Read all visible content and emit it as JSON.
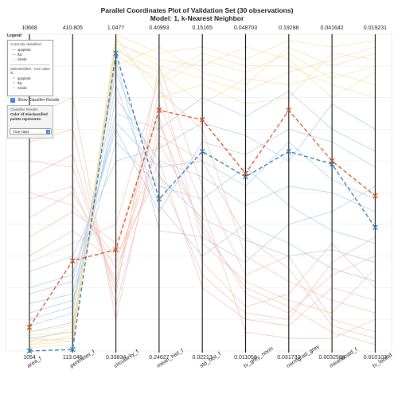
{
  "title": "Parallel Coordinates Plot of Validation Set (30 observations)",
  "subtitle": "Model: 1, k-Nearest Neighbor",
  "legend": {
    "header": "Legend",
    "correct_heading": "Correctly classified",
    "correct_items": [
      {
        "label": "apoptotic",
        "color": "#3d8fd1"
      },
      {
        "label": "flat",
        "color": "#e0622d"
      },
      {
        "label": "mitotic",
        "color": "#f2b233"
      }
    ],
    "mis_heading": "Misclassified - true class is:",
    "mis_items": [
      {
        "label": "apoptotic",
        "color": "#3d8fd1"
      },
      {
        "label": "flat",
        "color": "#e0622d"
      },
      {
        "label": "mitotic",
        "color": "#f2b233"
      }
    ]
  },
  "controls": {
    "show_results_label": "Show Classifier Results",
    "show_results_checked": true,
    "classifier_results_label": "Classifier Results",
    "color_question": "Color of misclassified points represents:",
    "color_select_value": "True class"
  },
  "chart_data": {
    "type": "parallel_coordinates",
    "axes": [
      {
        "name": "area_f",
        "max": "10668",
        "min": "1054"
      },
      {
        "name": "perimeter_f",
        "max": "410.805",
        "min": "113.046"
      },
      {
        "name": "circularity_f",
        "max": "1.0477",
        "min": "0.33834"
      },
      {
        "name": "mean_hist_f",
        "max": "0.40993",
        "min": "0.24627"
      },
      {
        "name": "std_hist_f",
        "max": "0.15165",
        "min": "0.02213"
      },
      {
        "name": "tv_grey_norm",
        "max": "0.048703",
        "min": "0.011056"
      },
      {
        "name": "normgrad_grey",
        "max": "0.19288",
        "min": "0.031732"
      },
      {
        "name": "meanbcstd_f",
        "max": "0.041642",
        "min": "0.0032588"
      },
      {
        "name": "tv_locstd",
        "max": "0.019231",
        "min": "0.010103"
      }
    ],
    "highlighted": [
      {
        "true_class": "apoptotic",
        "color": "#2e7ab8",
        "values": [
          0.0,
          0.005,
          0.94,
          0.48,
          0.63,
          0.55,
          0.63,
          0.59,
          0.39
        ]
      },
      {
        "true_class": "flat",
        "color": "#d9541f",
        "values": [
          0.075,
          0.285,
          0.32,
          0.76,
          0.73,
          0.56,
          0.76,
          0.6,
          0.49
        ]
      }
    ],
    "background_series": [
      {
        "class": "apoptotic",
        "color": "#a9c9e6",
        "values": [
          0.1,
          0.14,
          0.88,
          0.55,
          0.42,
          0.35,
          0.3,
          0.32,
          0.28
        ]
      },
      {
        "class": "apoptotic",
        "color": "#a9c9e6",
        "values": [
          0.06,
          0.09,
          0.8,
          0.6,
          0.55,
          0.46,
          0.52,
          0.5,
          0.44
        ]
      },
      {
        "class": "apoptotic",
        "color": "#a9c9e6",
        "values": [
          0.2,
          0.24,
          0.7,
          0.44,
          0.66,
          0.62,
          0.7,
          0.66,
          0.58
        ]
      },
      {
        "class": "apoptotic",
        "color": "#a9c9e6",
        "values": [
          0.15,
          0.18,
          0.75,
          0.7,
          0.8,
          0.74,
          0.82,
          0.7,
          0.63
        ]
      },
      {
        "class": "apoptotic",
        "color": "#a9c9e6",
        "values": [
          0.04,
          0.06,
          0.92,
          0.38,
          0.36,
          0.28,
          0.4,
          0.44,
          0.52
        ]
      },
      {
        "class": "apoptotic",
        "color": "#a9c9e6",
        "values": [
          0.12,
          0.16,
          0.66,
          0.52,
          0.48,
          0.58,
          0.46,
          0.38,
          0.34
        ]
      },
      {
        "class": "apoptotic",
        "color": "#a9c9e6",
        "values": [
          0.25,
          0.3,
          0.6,
          0.64,
          0.72,
          0.68,
          0.6,
          0.78,
          0.7
        ]
      },
      {
        "class": "apoptotic",
        "color": "#a9c9e6",
        "values": [
          0.08,
          0.12,
          0.84,
          0.46,
          0.3,
          0.4,
          0.34,
          0.26,
          0.22
        ]
      },
      {
        "class": "apoptotic",
        "color": "#a9c9e6",
        "values": [
          0.18,
          0.22,
          0.72,
          0.58,
          0.6,
          0.52,
          0.66,
          0.54,
          0.48
        ]
      },
      {
        "class": "flat",
        "color": "#f2c0b2",
        "values": [
          0.48,
          0.52,
          0.22,
          0.82,
          0.7,
          0.3,
          0.22,
          0.16,
          0.12
        ]
      },
      {
        "class": "flat",
        "color": "#f2c0b2",
        "values": [
          0.3,
          0.38,
          0.28,
          0.66,
          0.4,
          0.18,
          0.12,
          0.24,
          0.3
        ]
      },
      {
        "class": "flat",
        "color": "#f2c0b2",
        "values": [
          0.55,
          0.62,
          0.18,
          0.9,
          0.52,
          0.24,
          0.3,
          0.1,
          0.06
        ]
      },
      {
        "class": "flat",
        "color": "#f2c0b2",
        "values": [
          0.36,
          0.44,
          0.34,
          0.74,
          0.28,
          0.14,
          0.18,
          0.34,
          0.2
        ]
      },
      {
        "class": "flat",
        "color": "#f2c0b2",
        "values": [
          0.66,
          0.7,
          0.14,
          0.68,
          0.6,
          0.36,
          0.26,
          0.08,
          0.04
        ]
      },
      {
        "class": "flat",
        "color": "#f2c0b2",
        "values": [
          0.42,
          0.5,
          0.26,
          0.6,
          0.2,
          0.1,
          0.08,
          0.2,
          0.16
        ]
      },
      {
        "class": "flat",
        "color": "#f2c0b2",
        "values": [
          0.28,
          0.34,
          0.4,
          0.86,
          0.34,
          0.22,
          0.16,
          0.12,
          0.26
        ]
      },
      {
        "class": "flat",
        "color": "#f2c0b2",
        "values": [
          0.6,
          0.58,
          0.2,
          0.78,
          0.46,
          0.06,
          0.04,
          0.04,
          0.1
        ]
      },
      {
        "class": "flat",
        "color": "#f2c0b2",
        "values": [
          0.5,
          0.46,
          0.3,
          0.56,
          0.24,
          0.12,
          0.1,
          0.28,
          0.36
        ]
      },
      {
        "class": "flat",
        "color": "#f2c0b2",
        "values": [
          0.74,
          0.8,
          0.1,
          0.72,
          0.38,
          0.2,
          0.14,
          0.06,
          0.02
        ]
      },
      {
        "class": "mitotic",
        "color": "#f7dfa8",
        "values": [
          0.02,
          0.03,
          0.98,
          0.9,
          0.86,
          0.82,
          0.88,
          0.92,
          0.96
        ]
      },
      {
        "class": "mitotic",
        "color": "#f7dfa8",
        "values": [
          0.03,
          0.04,
          0.96,
          0.84,
          0.92,
          0.88,
          0.94,
          0.86,
          0.9
        ]
      },
      {
        "class": "mitotic",
        "color": "#f7dfa8",
        "values": [
          0.01,
          0.02,
          1.0,
          0.94,
          0.96,
          0.92,
          0.98,
          0.96,
          0.98
        ]
      },
      {
        "class": "mitotic",
        "color": "#f7dfa8",
        "values": [
          0.05,
          0.06,
          0.95,
          0.88,
          0.78,
          0.86,
          0.84,
          0.88,
          0.84
        ]
      },
      {
        "class": "mitotic",
        "color": "#f7dfa8",
        "values": [
          0.02,
          0.05,
          0.97,
          0.92,
          0.9,
          0.96,
          0.92,
          0.8,
          0.88
        ]
      },
      {
        "class": "mitotic",
        "color": "#f7dfa8",
        "values": [
          0.04,
          0.03,
          0.99,
          0.8,
          0.84,
          0.78,
          0.8,
          0.94,
          0.92
        ]
      },
      {
        "class": "mitotic",
        "color": "#f7dfa8",
        "values": [
          0.03,
          0.07,
          0.93,
          0.86,
          0.94,
          0.9,
          0.9,
          0.84,
          0.8
        ]
      },
      {
        "class": "mitotic",
        "color": "#f7dfa8",
        "values": [
          0.06,
          0.08,
          0.9,
          0.96,
          0.88,
          0.84,
          0.96,
          0.9,
          0.94
        ]
      }
    ],
    "grid": true
  }
}
